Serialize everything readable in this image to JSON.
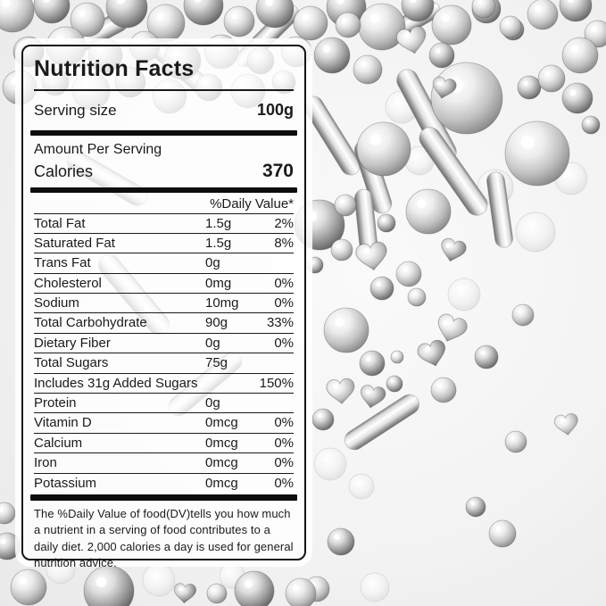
{
  "label": {
    "title": "Nutrition Facts",
    "serving_label": "Serving size",
    "serving_value": "100g",
    "amount_per_serving": "Amount Per Serving",
    "calories_label": "Calories",
    "calories_value": "370",
    "daily_value_header": "%Daily Value*",
    "rows": [
      {
        "name": "Total Fat",
        "amount": "1.5g",
        "dv": "2%"
      },
      {
        "name": "Saturated Fat",
        "amount": "1.5g",
        "dv": "8%"
      },
      {
        "name": "Trans Fat",
        "amount": "0g",
        "dv": ""
      },
      {
        "name": "Cholesterol",
        "amount": "0mg",
        "dv": "0%"
      },
      {
        "name": "Sodium",
        "amount": "10mg",
        "dv": "0%"
      },
      {
        "name": "Total Carbohydrate",
        "amount": "90g",
        "dv": "33%"
      },
      {
        "name": "Dietary Fiber",
        "amount": "0g",
        "dv": "0%"
      },
      {
        "name": "Total Sugars",
        "amount": "75g",
        "dv": ""
      },
      {
        "name": "Includes 31g Added Sugars",
        "amount": "",
        "dv": "150%"
      },
      {
        "name": "Protein",
        "amount": "0g",
        "dv": ""
      },
      {
        "name": "Vitamin D",
        "amount": "0mcg",
        "dv": "0%"
      },
      {
        "name": "Calcium",
        "amount": "0mcg",
        "dv": "0%"
      },
      {
        "name": "Iron",
        "amount": "0mcg",
        "dv": "0%"
      },
      {
        "name": "Potassium",
        "amount": "0mcg",
        "dv": "0%"
      }
    ],
    "footnote": "The %Daily Value of food(DV)tells you how much a nutrient in a serving of food contributes to a daily diet. 2,000 calories a day is used for general nutrition advice."
  },
  "colors": {
    "label_border": "#141414",
    "label_text": "#1a1a1a",
    "divider_bar": "#0d0d0d",
    "label_background": "rgba(255,255,255,0.78)",
    "page_background": "#f3f3f3",
    "sprinkle_silver": "#c2c2c2"
  }
}
